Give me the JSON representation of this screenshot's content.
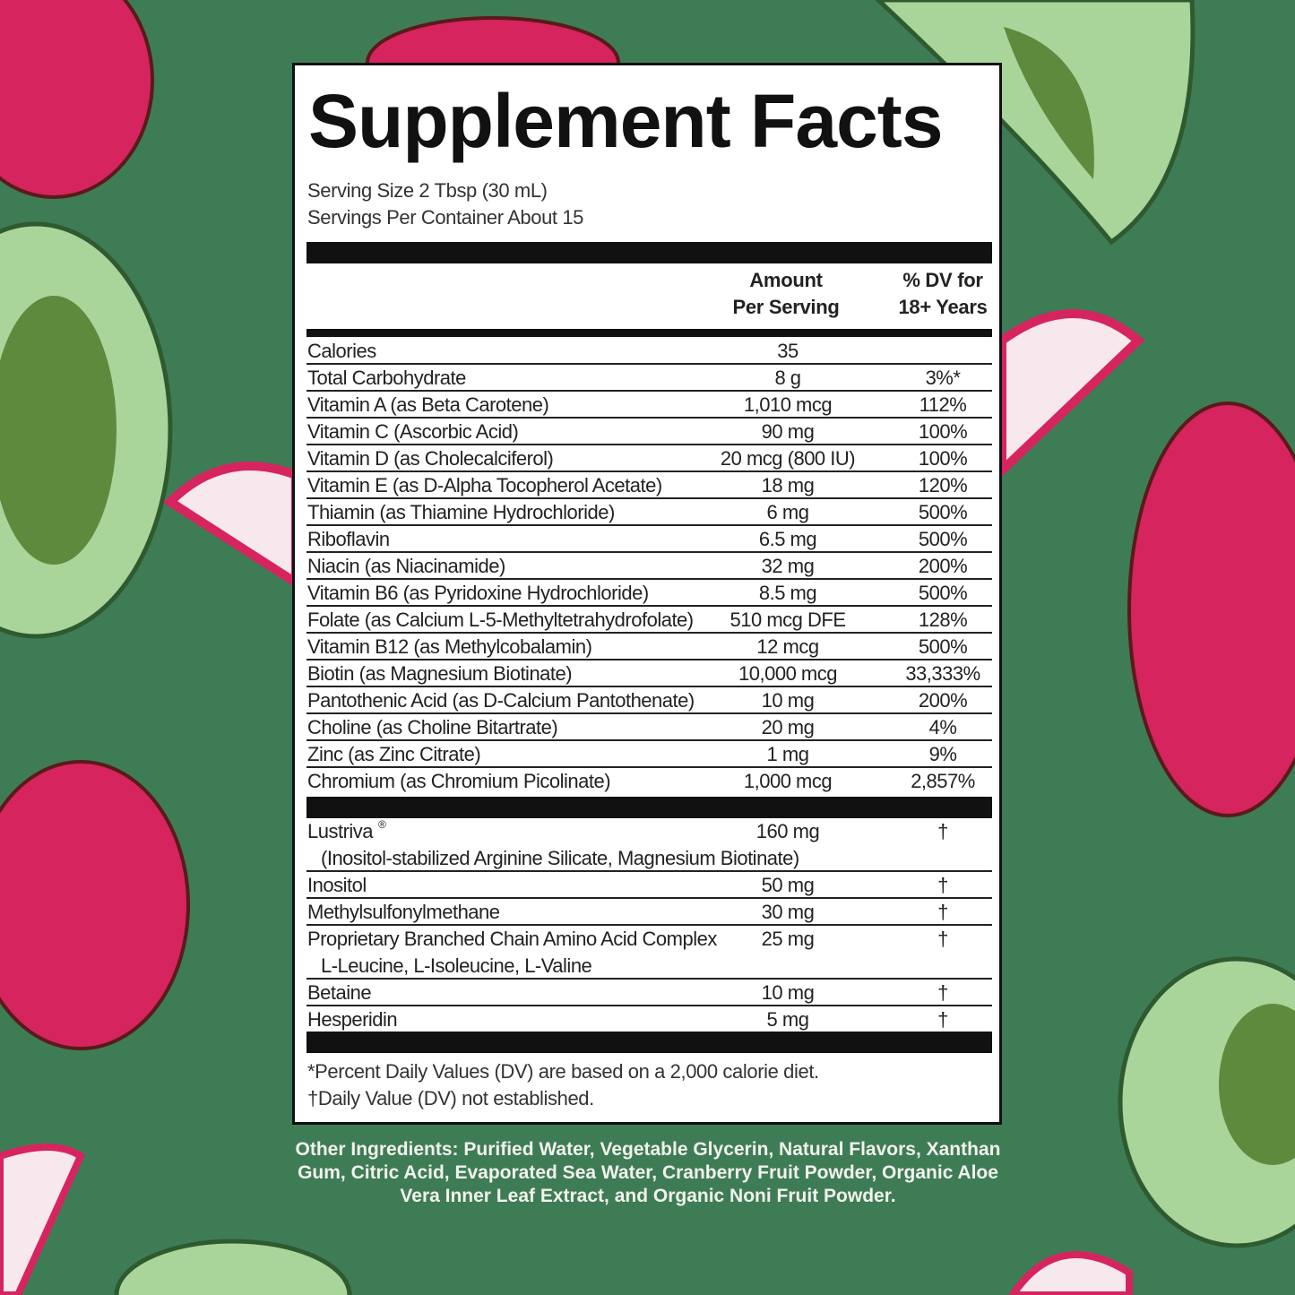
{
  "colors": {
    "background": "#3e7c55",
    "panel": "#ffffff",
    "text": "#222222",
    "fruit_pink": "#d6245e",
    "fruit_green": "#a9d59a"
  },
  "label": {
    "title": "Supplement Facts",
    "serving_size": "Serving Size 2 Tbsp (30 mL)",
    "servings_per_container": "Servings Per Container About 15",
    "header": {
      "amount_line1": "Amount",
      "amount_line2": "Per Serving",
      "dv_line1": "% DV for",
      "dv_line2": "18+ Years"
    },
    "nutrients": [
      {
        "name": "Calories",
        "amount": "35",
        "dv": ""
      },
      {
        "name": "Total Carbohydrate",
        "amount": "8 g",
        "dv": "3%*"
      },
      {
        "name": "Vitamin A (as Beta Carotene)",
        "amount": "1,010 mcg",
        "dv": "112%"
      },
      {
        "name": "Vitamin C (Ascorbic Acid)",
        "amount": "90 mg",
        "dv": "100%"
      },
      {
        "name": "Vitamin D (as Cholecalciferol)",
        "amount": "20 mcg (800 IU)",
        "dv": "100%"
      },
      {
        "name": "Vitamin E (as D-Alpha Tocopherol Acetate)",
        "amount": "18 mg",
        "dv": "120%"
      },
      {
        "name": "Thiamin (as Thiamine Hydrochloride)",
        "amount": "6 mg",
        "dv": "500%"
      },
      {
        "name": "Riboflavin",
        "amount": "6.5 mg",
        "dv": "500%"
      },
      {
        "name": "Niacin (as Niacinamide)",
        "amount": "32 mg",
        "dv": "200%"
      },
      {
        "name": "Vitamin B6 (as Pyridoxine Hydrochloride)",
        "amount": "8.5 mg",
        "dv": "500%"
      },
      {
        "name": "Folate (as Calcium L-5-Methyltetrahydrofolate)",
        "amount": "510 mcg DFE",
        "dv": "128%"
      },
      {
        "name": "Vitamin B12 (as Methylcobalamin)",
        "amount": "12 mcg",
        "dv": "500%"
      },
      {
        "name": "Biotin (as Magnesium Biotinate)",
        "amount": "10,000 mcg",
        "dv": "33,333%"
      },
      {
        "name": "Pantothenic Acid (as D-Calcium Pantothenate)",
        "amount": "10 mg",
        "dv": "200%"
      },
      {
        "name": "Choline (as Choline Bitartrate)",
        "amount": "20 mg",
        "dv": "4%"
      },
      {
        "name": "Zinc (as Zinc Citrate)",
        "amount": "1 mg",
        "dv": "9%"
      },
      {
        "name": "Chromium (as Chromium Picolinate)",
        "amount": "1,000 mcg",
        "dv": "2,857%"
      }
    ],
    "other_actives": [
      {
        "name": "Lustriva",
        "mark": "®",
        "sub": "(Inositol-stabilized Arginine Silicate, Magnesium Biotinate)",
        "amount": "160 mg",
        "dv": "†"
      },
      {
        "name": "Inositol",
        "amount": "50 mg",
        "dv": "†"
      },
      {
        "name": "Methylsulfonylmethane",
        "amount": "30 mg",
        "dv": "†"
      },
      {
        "name": "Proprietary Branched Chain Amino Acid Complex",
        "sub": "L-Leucine, L-Isoleucine, L-Valine",
        "amount": "25 mg",
        "dv": "†"
      },
      {
        "name": "Betaine",
        "amount": "10 mg",
        "dv": "†"
      },
      {
        "name": "Hesperidin",
        "amount": "5 mg",
        "dv": "†"
      }
    ],
    "footnote_1": "*Percent Daily Values (DV) are based on a 2,000 calorie diet.",
    "footnote_2": "†Daily Value (DV) not established."
  },
  "other_ingredients": "Other Ingredients: Purified Water, Vegetable Glycerin, Natural Flavors, Xanthan Gum, Citric Acid, Evaporated Sea Water, Cranberry Fruit Powder, Organic Aloe Vera Inner Leaf Extract, and Organic Noni Fruit Powder."
}
